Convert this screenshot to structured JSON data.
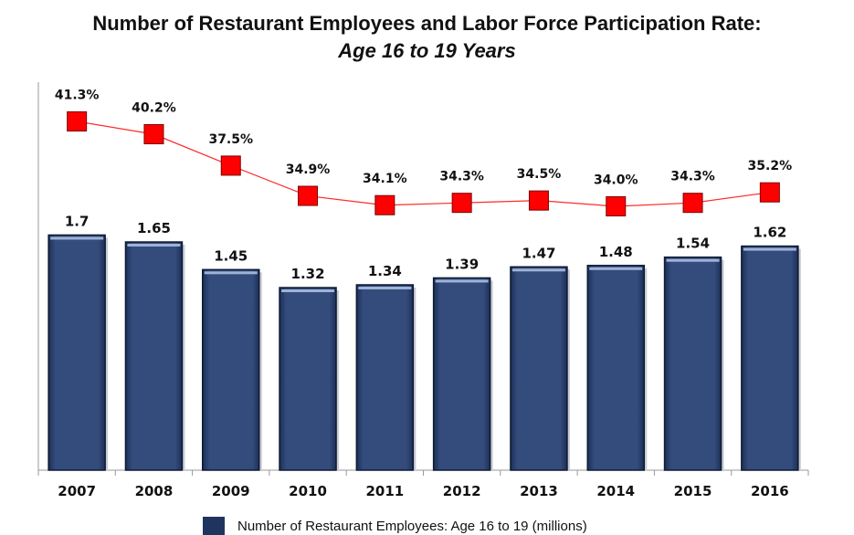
{
  "title": "Number of Restaurant Employees and Labor Force Participation Rate:",
  "subtitle": "Age 16 to 19 Years",
  "legend": {
    "bar_label": "Number of Restaurant Employees: Age 16 to 19 (millions)"
  },
  "colors": {
    "bar_fill": "#344c7c",
    "bar_border": "#0e1a33",
    "bar_highlight": "#9fb2d8",
    "line": "#ff2a2a",
    "marker": "#ff0000",
    "axis": "#999999"
  },
  "chart_data": {
    "type": "bar+line",
    "categories": [
      "2007",
      "2008",
      "2009",
      "2010",
      "2011",
      "2012",
      "2013",
      "2014",
      "2015",
      "2016"
    ],
    "series": [
      {
        "name": "Number of Restaurant Employees: Age 16 to 19 (millions)",
        "type": "bar",
        "values": [
          1.7,
          1.65,
          1.45,
          1.32,
          1.34,
          1.39,
          1.47,
          1.48,
          1.54,
          1.62
        ],
        "labels": [
          "1.7",
          "1.65",
          "1.45",
          "1.32",
          "1.34",
          "1.39",
          "1.47",
          "1.48",
          "1.54",
          "1.62"
        ]
      },
      {
        "type": "line",
        "values": [
          41.3,
          40.2,
          37.5,
          34.9,
          34.1,
          34.3,
          34.5,
          34.0,
          34.3,
          35.2
        ],
        "labels": [
          "41.3%",
          "40.2%",
          "37.5%",
          "34.9%",
          "34.1%",
          "34.3%",
          "34.5%",
          "34.0%",
          "34.3%",
          "35.2%"
        ]
      }
    ],
    "bar_ylim": [
      0,
      2.0
    ],
    "line_ylim": [
      20,
      45
    ],
    "grid": false,
    "legend_position": "bottom"
  }
}
